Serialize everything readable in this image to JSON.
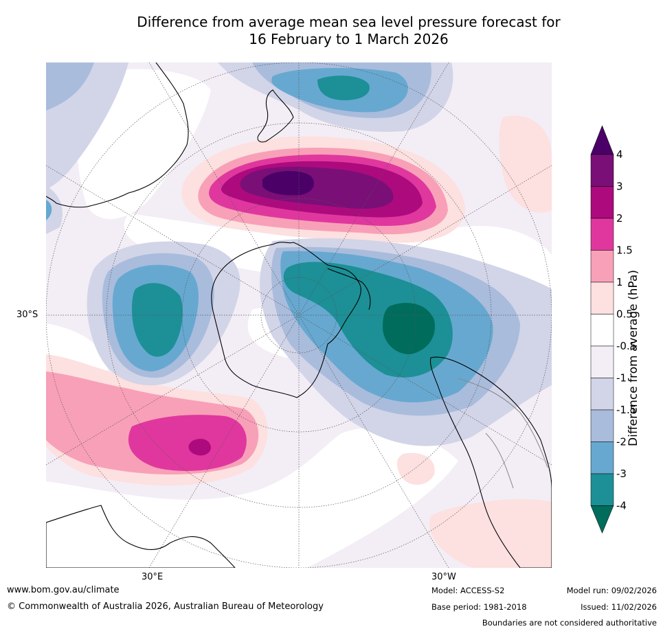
{
  "title": {
    "line1": "Difference from average mean sea level pressure forecast for",
    "line2": "16 February to 1 March 2026"
  },
  "map_labels": {
    "lat_30s": "30°S",
    "lon_30e": "30°E",
    "lon_30w": "30°W"
  },
  "colorbar": {
    "title": "Difference from average (hPa)",
    "ticks": [
      "4",
      "3",
      "2",
      "1.5",
      "1",
      "0.5",
      "-0.5",
      "-1",
      "-1.5",
      "-2",
      "-3",
      "-4"
    ],
    "colors": {
      "above_4": "#4b0068",
      "3_to_4": "#7a0f78",
      "2_to_3": "#ad0a7e",
      "1_5_to_2": "#e0379e",
      "1_to_1_5": "#f8a0b8",
      "0_5_to_1": "#fde0e0",
      "neutral": "#ffffff",
      "m0_5_to_m1": "#f3edf5",
      "m1_to_m1_5": "#d2d4e8",
      "m1_5_to_m2": "#a9bcdc",
      "m2_to_m3": "#67a8d0",
      "m3_to_m4": "#1c9096",
      "below_m4": "#006c5c"
    }
  },
  "footer": {
    "website": "www.bom.gov.au/climate",
    "copyright": "© Commonwealth of Australia 2026, Australian Bureau of Meteorology",
    "model": "Model: ACCESS-S2",
    "base_period": "Base period: 1981-2018",
    "model_run": "Model run: 09/02/2026",
    "issued": "Issued: 11/02/2026",
    "disclaimer": "Boundaries are not considered authoritative"
  }
}
